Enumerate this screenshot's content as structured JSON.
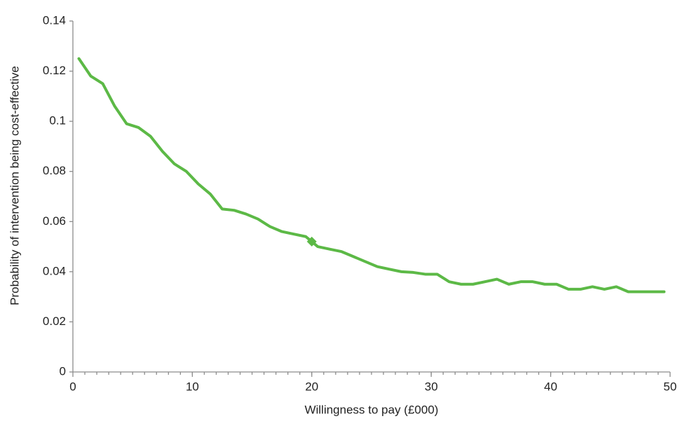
{
  "chart_data": {
    "type": "line",
    "x_label": "Willingness to pay (£000)",
    "y_label": "Probability of intervention being cost-effective",
    "x": [
      0.5,
      1.5,
      2.5,
      3.5,
      4.5,
      5.5,
      6.5,
      7.5,
      8.5,
      9.5,
      10.5,
      11.5,
      12.5,
      13.5,
      14.5,
      15.5,
      16.5,
      17.5,
      18.5,
      19.5,
      20.5,
      21.5,
      22.5,
      23.5,
      24.5,
      25.5,
      26.5,
      27.5,
      28.5,
      29.5,
      30.5,
      31.5,
      32.5,
      33.5,
      34.5,
      35.5,
      36.5,
      37.5,
      38.5,
      39.5,
      40.5,
      41.5,
      42.5,
      43.5,
      44.5,
      45.5,
      46.5,
      47.5,
      48.5,
      49.5
    ],
    "series": [
      {
        "color": "#5cb946",
        "values": [
          0.125,
          0.118,
          0.115,
          0.106,
          0.099,
          0.0975,
          0.094,
          0.088,
          0.083,
          0.08,
          0.075,
          0.071,
          0.065,
          0.0645,
          0.063,
          0.061,
          0.058,
          0.056,
          0.055,
          0.054,
          0.05,
          0.049,
          0.048,
          0.046,
          0.044,
          0.042,
          0.041,
          0.04,
          0.0397,
          0.039,
          0.039,
          0.036,
          0.035,
          0.035,
          0.036,
          0.037,
          0.035,
          0.036,
          0.036,
          0.035,
          0.035,
          0.033,
          0.033,
          0.034,
          0.033,
          0.034,
          0.032,
          0.032,
          0.032,
          0.032
        ]
      }
    ],
    "highlight": {
      "x": 20,
      "y": 0.052
    },
    "xlim": [
      0,
      50
    ],
    "xticks": [
      0,
      10,
      20,
      30,
      40,
      50
    ],
    "xminor_interval": 1,
    "ylim": [
      0,
      0.14
    ],
    "yticks": [
      0,
      0.02,
      0.04,
      0.06,
      0.08,
      0.1,
      0.12,
      0.14
    ],
    "grid": false
  }
}
